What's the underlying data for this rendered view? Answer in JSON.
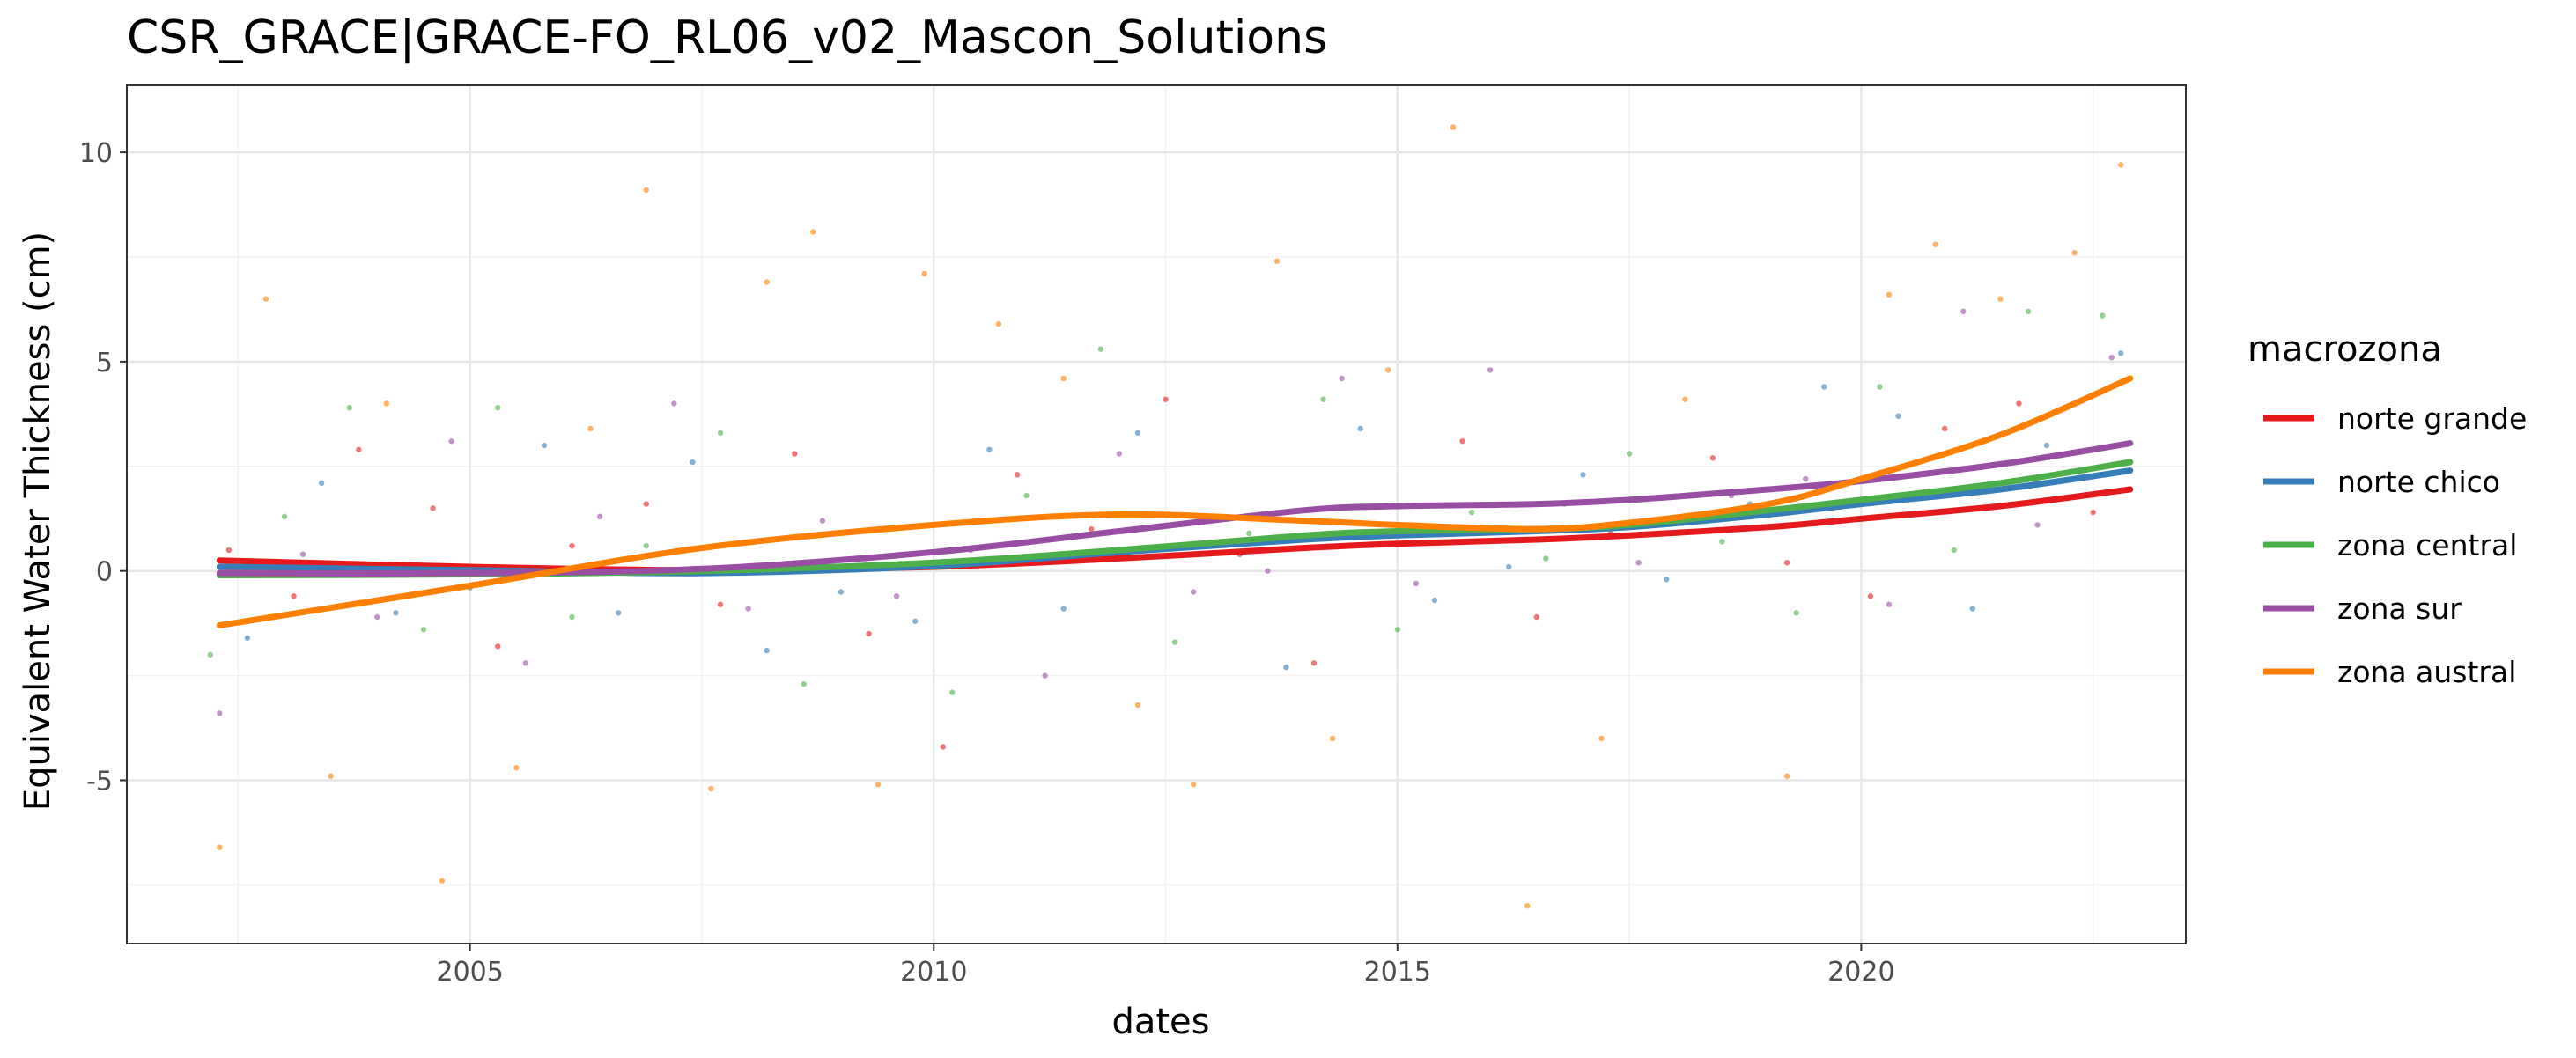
{
  "chart_data": {
    "type": "scatter",
    "title": "CSR_GRACE|GRACE-FO_RL06_v02_Mascon_Solutions",
    "xlabel": "dates",
    "ylabel": "Equivalent Water Thickness (cm)",
    "xlim": [
      2001.3,
      2023.5
    ],
    "ylim": [
      -8.9,
      11.6
    ],
    "x_ticks": [
      2005,
      2010,
      2015,
      2020
    ],
    "x_tick_labels": [
      "2005",
      "2010",
      "2015",
      "2020"
    ],
    "y_ticks": [
      -5,
      0,
      5,
      10
    ],
    "y_tick_labels": [
      "-5",
      "0",
      "5",
      "10"
    ],
    "grid": true,
    "legend": {
      "title": "macrozona",
      "position": "right"
    },
    "smooth_x": [
      2002.3,
      2005,
      2007.5,
      2010,
      2012,
      2014,
      2015,
      2016.5,
      2017.5,
      2019,
      2020,
      2021.5,
      2022.9
    ],
    "series": [
      {
        "name": "norte grande",
        "color": "#E41A1C",
        "smooth": [
          0.25,
          0.1,
          0.02,
          0.1,
          0.3,
          0.55,
          0.65,
          0.75,
          0.85,
          1.05,
          1.25,
          1.55,
          1.95
        ]
      },
      {
        "name": "norte chico",
        "color": "#377EB8",
        "smooth": [
          0.1,
          0.02,
          -0.05,
          0.12,
          0.45,
          0.75,
          0.85,
          0.95,
          1.05,
          1.35,
          1.6,
          1.95,
          2.4
        ]
      },
      {
        "name": "zona central",
        "color": "#4DAF4A",
        "smooth": [
          -0.1,
          -0.08,
          0.0,
          0.2,
          0.5,
          0.85,
          0.95,
          1.0,
          1.1,
          1.45,
          1.7,
          2.1,
          2.6
        ]
      },
      {
        "name": "zona sur",
        "color": "#984EA3",
        "smooth": [
          -0.05,
          -0.05,
          0.05,
          0.45,
          0.95,
          1.45,
          1.55,
          1.6,
          1.7,
          1.95,
          2.15,
          2.55,
          3.05
        ]
      },
      {
        "name": "zona austral",
        "color": "#FF7F00",
        "smooth": [
          -1.3,
          -0.35,
          0.55,
          1.1,
          1.35,
          1.2,
          1.1,
          1.0,
          1.15,
          1.6,
          2.2,
          3.25,
          4.6
        ]
      }
    ],
    "points": {
      "norte grande": [
        [
          2002.4,
          0.5
        ],
        [
          2003.1,
          -0.6
        ],
        [
          2003.8,
          2.9
        ],
        [
          2004.6,
          1.5
        ],
        [
          2005.3,
          -1.8
        ],
        [
          2006.1,
          0.6
        ],
        [
          2006.9,
          1.6
        ],
        [
          2007.7,
          -0.8
        ],
        [
          2008.5,
          2.8
        ],
        [
          2009.3,
          -1.5
        ],
        [
          2010.1,
          -4.2
        ],
        [
          2010.9,
          2.3
        ],
        [
          2011.7,
          1.0
        ],
        [
          2012.5,
          4.1
        ],
        [
          2013.3,
          0.4
        ],
        [
          2014.1,
          -2.2
        ],
        [
          2014.9,
          1.1
        ],
        [
          2015.7,
          3.1
        ],
        [
          2016.5,
          -1.1
        ],
        [
          2017.3,
          0.9
        ],
        [
          2018.4,
          2.7
        ],
        [
          2019.2,
          0.2
        ],
        [
          2020.1,
          -0.6
        ],
        [
          2020.9,
          3.4
        ],
        [
          2021.7,
          4.0
        ],
        [
          2022.5,
          1.4
        ]
      ],
      "norte chico": [
        [
          2002.6,
          -1.6
        ],
        [
          2003.4,
          2.1
        ],
        [
          2004.2,
          -1.0
        ],
        [
          2005.0,
          -0.4
        ],
        [
          2005.8,
          3.0
        ],
        [
          2006.6,
          -1.0
        ],
        [
          2007.4,
          2.6
        ],
        [
          2008.2,
          -1.9
        ],
        [
          2009.0,
          -0.5
        ],
        [
          2009.8,
          -1.2
        ],
        [
          2010.6,
          2.9
        ],
        [
          2011.4,
          -0.9
        ],
        [
          2012.2,
          3.3
        ],
        [
          2013.0,
          0.6
        ],
        [
          2013.8,
          -2.3
        ],
        [
          2014.6,
          3.4
        ],
        [
          2015.4,
          -0.7
        ],
        [
          2016.2,
          0.1
        ],
        [
          2017.0,
          2.3
        ],
        [
          2017.9,
          -0.2
        ],
        [
          2018.8,
          1.6
        ],
        [
          2019.6,
          4.4
        ],
        [
          2020.4,
          3.7
        ],
        [
          2021.2,
          -0.9
        ],
        [
          2022.0,
          3.0
        ],
        [
          2022.8,
          5.2
        ]
      ],
      "zona central": [
        [
          2002.2,
          -2.0
        ],
        [
          2003.0,
          1.3
        ],
        [
          2003.7,
          3.9
        ],
        [
          2004.5,
          -1.4
        ],
        [
          2005.3,
          3.9
        ],
        [
          2006.1,
          -1.1
        ],
        [
          2006.9,
          0.6
        ],
        [
          2007.7,
          3.3
        ],
        [
          2008.6,
          -2.7
        ],
        [
          2009.4,
          1.0
        ],
        [
          2010.2,
          -2.9
        ],
        [
          2011.0,
          1.8
        ],
        [
          2011.8,
          5.3
        ],
        [
          2012.6,
          -1.7
        ],
        [
          2013.4,
          0.9
        ],
        [
          2014.2,
          4.1
        ],
        [
          2015.0,
          -1.4
        ],
        [
          2015.8,
          1.4
        ],
        [
          2016.6,
          0.3
        ],
        [
          2017.5,
          2.8
        ],
        [
          2018.5,
          0.7
        ],
        [
          2019.3,
          -1.0
        ],
        [
          2020.2,
          4.4
        ],
        [
          2021.0,
          0.5
        ],
        [
          2021.8,
          6.2
        ],
        [
          2022.6,
          6.1
        ]
      ],
      "zona sur": [
        [
          2002.3,
          -3.4
        ],
        [
          2003.2,
          0.4
        ],
        [
          2004.0,
          -1.1
        ],
        [
          2004.8,
          3.1
        ],
        [
          2005.6,
          -2.2
        ],
        [
          2006.4,
          1.3
        ],
        [
          2007.2,
          4.0
        ],
        [
          2008.0,
          -0.9
        ],
        [
          2008.8,
          1.2
        ],
        [
          2009.6,
          -0.6
        ],
        [
          2010.4,
          0.5
        ],
        [
          2011.2,
          -2.5
        ],
        [
          2012.0,
          2.8
        ],
        [
          2012.8,
          -0.5
        ],
        [
          2013.6,
          0.0
        ],
        [
          2014.4,
          4.6
        ],
        [
          2015.2,
          -0.3
        ],
        [
          2016.0,
          4.8
        ],
        [
          2016.8,
          1.6
        ],
        [
          2017.6,
          0.2
        ],
        [
          2018.6,
          1.8
        ],
        [
          2019.4,
          2.2
        ],
        [
          2020.3,
          -0.8
        ],
        [
          2021.1,
          6.2
        ],
        [
          2021.9,
          1.1
        ],
        [
          2022.7,
          5.1
        ]
      ],
      "zona austral": [
        [
          2002.3,
          -6.6
        ],
        [
          2002.8,
          6.5
        ],
        [
          2003.5,
          -4.9
        ],
        [
          2004.1,
          4.0
        ],
        [
          2004.7,
          -7.4
        ],
        [
          2005.5,
          -4.7
        ],
        [
          2006.3,
          3.4
        ],
        [
          2006.9,
          9.1
        ],
        [
          2007.6,
          -5.2
        ],
        [
          2008.2,
          6.9
        ],
        [
          2008.7,
          8.1
        ],
        [
          2009.4,
          -5.1
        ],
        [
          2009.9,
          7.1
        ],
        [
          2010.7,
          5.9
        ],
        [
          2011.4,
          4.6
        ],
        [
          2012.2,
          -3.2
        ],
        [
          2012.8,
          -5.1
        ],
        [
          2013.7,
          7.4
        ],
        [
          2014.3,
          -4.0
        ],
        [
          2014.9,
          4.8
        ],
        [
          2015.6,
          10.6
        ],
        [
          2016.4,
          -8.0
        ],
        [
          2017.2,
          -4.0
        ],
        [
          2018.1,
          4.1
        ],
        [
          2019.2,
          -4.9
        ],
        [
          2020.3,
          6.6
        ],
        [
          2020.8,
          7.8
        ],
        [
          2021.5,
          6.5
        ],
        [
          2022.3,
          7.6
        ],
        [
          2022.8,
          9.7
        ]
      ]
    }
  }
}
